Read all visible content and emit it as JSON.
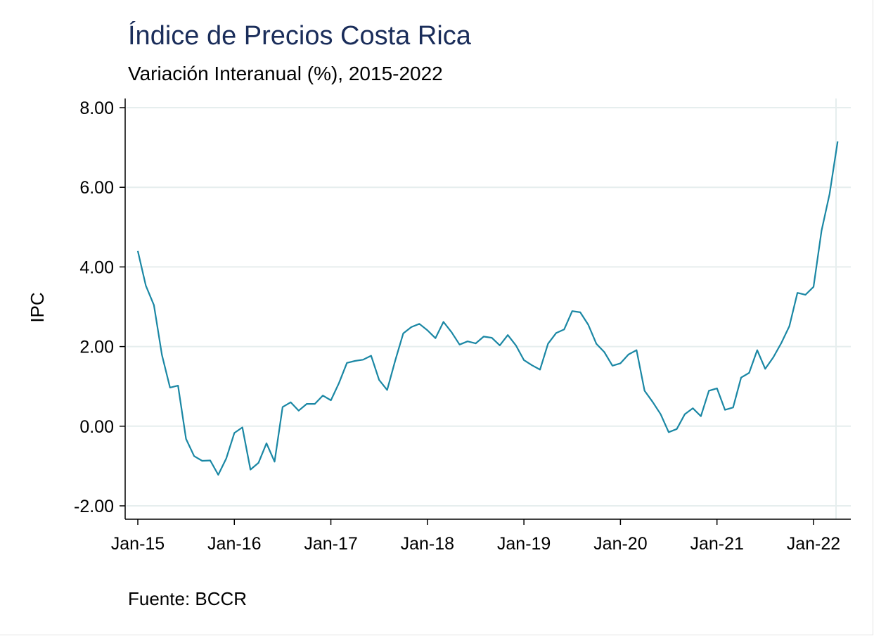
{
  "chart_data": {
    "type": "line",
    "title": "Índice de Precios Costa Rica",
    "subtitle": "Variación Interanual (%), 2015-2022",
    "ylabel": "IPC",
    "xlabel": "",
    "source": "Fuente: BCCR",
    "ylim": [
      -2.3,
      8.0
    ],
    "yticks": [
      -2,
      0,
      2,
      4,
      6,
      8
    ],
    "ytick_labels": [
      "-2.00",
      "0.00",
      "2.00",
      "4.00",
      "6.00",
      "8.00"
    ],
    "xticks": [
      "2015-01",
      "2016-01",
      "2017-01",
      "2018-01",
      "2019-01",
      "2020-01",
      "2021-01",
      "2022-01"
    ],
    "xtick_labels": [
      "Jan-15",
      "Jan-16",
      "Jan-17",
      "Jan-18",
      "Jan-19",
      "Jan-20",
      "Jan-21",
      "Jan-22"
    ],
    "grid": true,
    "line_color": "#1a87a4",
    "title_color": "#1a2d5a",
    "grid_color": "#e6eeee",
    "series": [
      {
        "x": [
          "2015-01",
          "2015-02",
          "2015-03",
          "2015-04",
          "2015-05",
          "2015-06",
          "2015-07",
          "2015-08",
          "2015-09",
          "2015-10",
          "2015-11",
          "2015-12",
          "2016-01",
          "2016-02",
          "2016-03",
          "2016-04",
          "2016-05",
          "2016-06",
          "2016-07",
          "2016-08",
          "2016-09",
          "2016-10",
          "2016-11",
          "2016-12",
          "2017-01",
          "2017-02",
          "2017-03",
          "2017-04",
          "2017-05",
          "2017-06",
          "2017-07",
          "2017-08",
          "2017-09",
          "2017-10",
          "2017-11",
          "2017-12",
          "2018-01",
          "2018-02",
          "2018-03",
          "2018-04",
          "2018-05",
          "2018-06",
          "2018-07",
          "2018-08",
          "2018-09",
          "2018-10",
          "2018-11",
          "2018-12",
          "2019-01",
          "2019-02",
          "2019-03",
          "2019-04",
          "2019-05",
          "2019-06",
          "2019-07",
          "2019-08",
          "2019-09",
          "2019-10",
          "2019-11",
          "2019-12",
          "2020-01",
          "2020-02",
          "2020-03",
          "2020-04",
          "2020-05",
          "2020-06",
          "2020-07",
          "2020-08",
          "2020-09",
          "2020-10",
          "2020-11",
          "2020-12",
          "2021-01",
          "2021-02",
          "2021-03",
          "2021-04",
          "2021-05",
          "2021-06",
          "2021-07",
          "2021-08",
          "2021-09",
          "2021-10",
          "2021-11",
          "2021-12",
          "2022-01",
          "2022-02",
          "2022-03",
          "2022-04"
        ],
        "values": [
          4.4,
          3.53,
          3.04,
          1.79,
          0.97,
          1.02,
          -0.32,
          -0.75,
          -0.87,
          -0.86,
          -1.22,
          -0.81,
          -0.17,
          -0.03,
          -1.09,
          -0.92,
          -0.43,
          -0.89,
          0.48,
          0.6,
          0.39,
          0.56,
          0.56,
          0.77,
          0.65,
          1.08,
          1.59,
          1.64,
          1.67,
          1.77,
          1.16,
          0.91,
          1.65,
          2.33,
          2.49,
          2.57,
          2.41,
          2.21,
          2.62,
          2.36,
          2.05,
          2.13,
          2.08,
          2.25,
          2.22,
          2.03,
          2.29,
          2.03,
          1.66,
          1.53,
          1.42,
          2.07,
          2.34,
          2.43,
          2.89,
          2.86,
          2.55,
          2.07,
          1.86,
          1.52,
          1.58,
          1.8,
          1.91,
          0.89,
          0.61,
          0.3,
          -0.15,
          -0.07,
          0.3,
          0.45,
          0.25,
          0.89,
          0.95,
          0.41,
          0.47,
          1.22,
          1.34,
          1.91,
          1.44,
          1.73,
          2.09,
          2.51,
          3.35,
          3.3,
          3.5,
          4.91,
          5.83,
          7.15
        ]
      }
    ]
  }
}
